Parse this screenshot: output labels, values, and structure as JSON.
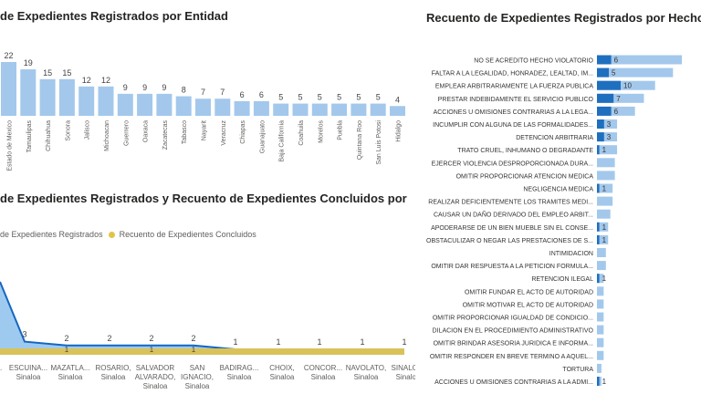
{
  "colors": {
    "bar_light": "#a3c8ec",
    "bar_dark": "#1f6fbf",
    "area_blue": "#9fcaf0",
    "line_blue": "#1566c0",
    "area_gold": "#d9c259",
    "text": "#252423",
    "muted": "#605e5c"
  },
  "chart_data": [
    {
      "type": "bar",
      "title": "de Expedientes Registrados por Entidad",
      "categories": [
        "Estado de Mexico",
        "Tamaulipas",
        "Chihuahua",
        "Sonora",
        "Jalisco",
        "Michoacan",
        "Guerrero",
        "Oaxaca",
        "Zacatecas",
        "Tabasco",
        "Nayarit",
        "Veracruz",
        "Chiapas",
        "Guanajuato",
        "Baja California",
        "Coahuila",
        "Morelos",
        "Puebla",
        "Quintana Roo",
        "San Luis Potosi",
        "Hidalgo"
      ],
      "values": [
        22,
        19,
        15,
        15,
        12,
        12,
        9,
        9,
        9,
        8,
        7,
        7,
        6,
        6,
        5,
        5,
        5,
        5,
        5,
        5,
        4
      ]
    },
    {
      "type": "area",
      "title": "de Expedientes Registrados y Recuento de Expedientes Concluidos por",
      "legend": [
        "de Expedientes Registrados",
        "Recuento de Expedientes Concluidos"
      ],
      "categories": [
        "",
        "ESCUINA... Sinaloa",
        "MAZATLA... Sinaloa",
        "ROSARIO, Sinaloa",
        "SALVADOR ALVARADO, Sinaloa",
        "SAN IGNACIO, Sinaloa",
        "BADIRAG... Sinaloa",
        "CHOIX, Sinaloa",
        "CONCOR... Sinaloa",
        "NAVOLATO, Sinaloa",
        "SINALOA, Sinaloa"
      ],
      "series": [
        {
          "name": "de Expedientes Registrados",
          "values": [
            null,
            3,
            2,
            2,
            2,
            2,
            1,
            1,
            1,
            1,
            1
          ],
          "labels": [
            "",
            "3",
            "2",
            "2",
            "2",
            "2",
            "1",
            "1",
            "1",
            "1",
            "1"
          ]
        },
        {
          "name": "Recuento de Expedientes Concluidos",
          "values": [
            null,
            1,
            1,
            1,
            1,
            1,
            1,
            1,
            1,
            1,
            1
          ],
          "labels": [
            "",
            "",
            "1",
            "",
            "1",
            "1",
            "",
            "",
            "",
            "",
            ""
          ]
        }
      ]
    },
    {
      "type": "bar",
      "orientation": "horizontal",
      "title": "Recuento de Expedientes Registrados por Hechos V",
      "categories": [
        "NO SE ACREDITO HECHO VIOLATORIO",
        "FALTAR A LA LEGALIDAD, HONRADEZ, LEALTAD, IM...",
        "EMPLEAR ARBITRARIAMENTE LA FUERZA PUBLICA",
        "PRESTAR INDEBIDAMENTE EL SERVICIO PUBLICO",
        "ACCIONES U OMISIONES CONTRARIAS A LA LEGA...",
        "INCUMPLIR CON ALGUNA DE LAS FORMALIDADES...",
        "DETENCION ARBITRARIA",
        "TRATO CRUEL, INHUMANO O DEGRADANTE",
        "EJERCER VIOLENCIA DESPROPORCIONADA DURA...",
        "OMITIR PROPORCIONAR ATENCION MEDICA",
        "NEGLIGENCIA MEDICA",
        "REALIZAR DEFICIENTEMENTE LOS TRAMITES MEDI...",
        "CAUSAR UN DAÑO DERIVADO DEL EMPLEO ARBIT...",
        "APODERARSE DE UN BIEN MUEBLE SIN EL CONSE...",
        "OBSTACULIZAR O NEGAR LAS PRESTACIONES DE S...",
        "INTIMIDACION",
        "OMITIR DAR RESPUESTA A LA PETICION FORMULA...",
        "RETENCION ILEGAL",
        "OMITIR FUNDAR EL ACTO DE AUTORIDAD",
        "OMITIR MOTIVAR EL ACTO DE AUTORIDAD",
        "OMITIR PROPORCIONAR IGUALDAD DE CONDICIO...",
        "DILACION EN EL PROCEDIMIENTO ADMINISTRATIVO",
        "OMITIR BRINDAR ASESORIA JURIDICA E INFORMA...",
        "OMITIR RESPONDER EN BREVE TERMINO A AQUEL...",
        "TORTURA",
        "ACCIONES U OMISIONES CONTRARIAS A LA ADMI..."
      ],
      "series": [
        {
          "name": "total",
          "values": [
            38,
            34,
            26,
            21,
            17,
            9,
            9,
            9,
            8,
            8,
            7,
            7,
            6,
            5,
            5,
            4,
            4,
            3,
            3,
            3,
            3,
            3,
            3,
            3,
            2,
            2
          ]
        },
        {
          "name": "highlight",
          "values": [
            6,
            5,
            10,
            7,
            6,
            3,
            3,
            1,
            0,
            0,
            1,
            0,
            0,
            1,
            1,
            0,
            0,
            1,
            0,
            0,
            0,
            0,
            0,
            0,
            0,
            1
          ],
          "labels": [
            "6",
            "5",
            "10",
            "7",
            "6",
            "3",
            "3",
            "1",
            "",
            "",
            "1",
            "",
            "",
            "1",
            "1",
            "",
            "",
            "1",
            "",
            "",
            "",
            "",
            "",
            "",
            "",
            "1"
          ]
        }
      ]
    }
  ]
}
